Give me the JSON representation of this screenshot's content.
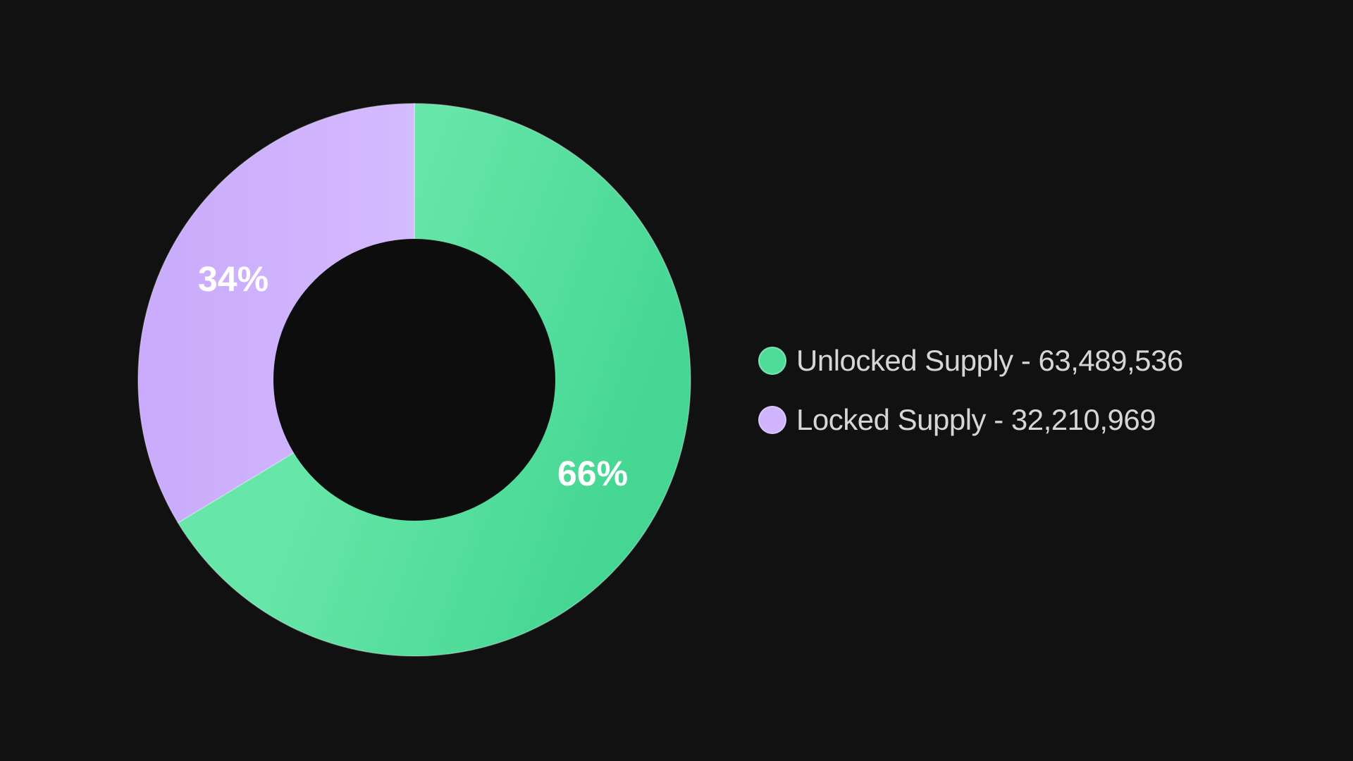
{
  "chart_data": {
    "type": "pie",
    "donut": true,
    "legend_position": "right",
    "slices": [
      {
        "name": "Unlocked Supply",
        "value": 63489536,
        "display_value": "63,489,536",
        "label": "66%",
        "color": "#5fe3a4"
      },
      {
        "name": "Locked Supply",
        "value": 32210969,
        "display_value": "32,210,969",
        "label": "34%",
        "color": "#d0b5fd"
      }
    ]
  },
  "legend": {
    "separator": " - "
  },
  "colors": {
    "background": "#111111",
    "hole": "#0d0d0d",
    "text": "#d6d6d6"
  }
}
